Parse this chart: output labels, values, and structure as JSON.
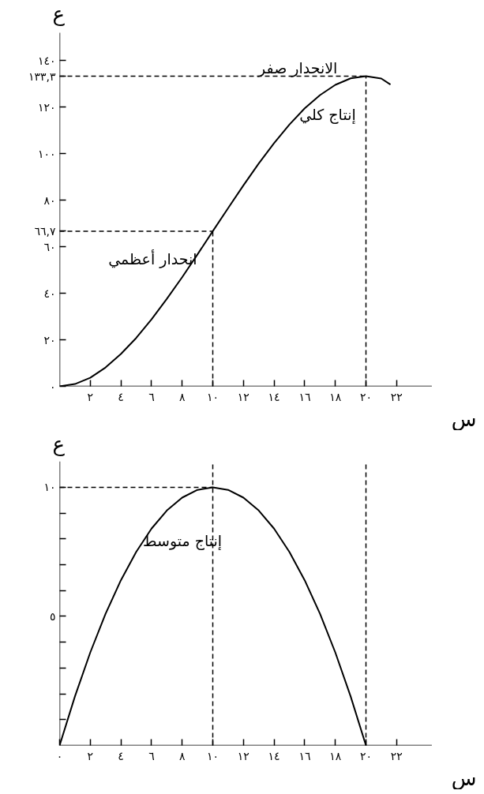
{
  "chart_data": [
    {
      "type": "line",
      "xlabel": "س",
      "ylabel": "ع",
      "x": [
        0,
        1,
        2,
        3,
        4,
        5,
        6,
        7,
        8,
        9,
        10,
        11,
        12,
        13,
        14,
        15,
        16,
        17,
        18,
        19,
        20,
        21,
        21.6
      ],
      "series": [
        {
          "color": "#000000",
          "values": [
            0,
            1.0,
            3.7,
            8.1,
            13.9,
            20.8,
            28.8,
            37.6,
            46.9,
            56.7,
            66.7,
            76.6,
            86.4,
            95.8,
            104.5,
            112.5,
            119.5,
            125.2,
            129.6,
            132.4,
            133.3,
            132.3,
            129.7
          ]
        }
      ],
      "xlim": [
        0,
        24.3
      ],
      "ylim": [
        0,
        152
      ],
      "xticks": [
        {
          "value": 2,
          "label": "٢"
        },
        {
          "value": 4,
          "label": "٤"
        },
        {
          "value": 6,
          "label": "٦"
        },
        {
          "value": 8,
          "label": "٨"
        },
        {
          "value": 10,
          "label": "١٠"
        },
        {
          "value": 12,
          "label": "١٢"
        },
        {
          "value": 14,
          "label": "١٤"
        },
        {
          "value": 16,
          "label": "١٦"
        },
        {
          "value": 18,
          "label": "١٨"
        },
        {
          "value": 20,
          "label": "٢٠"
        },
        {
          "value": 22,
          "label": "٢٢"
        }
      ],
      "yticks": [
        {
          "value": 0,
          "label": "٠"
        },
        {
          "value": 20,
          "label": "٢٠"
        },
        {
          "value": 40,
          "label": "٤٠"
        },
        {
          "value": 60,
          "label": "٦٠"
        },
        {
          "value": 66.7,
          "label": "٦٦,٧"
        },
        {
          "value": 80,
          "label": "٨٠"
        },
        {
          "value": 100,
          "label": "١٠٠"
        },
        {
          "value": 120,
          "label": "١٢٠"
        },
        {
          "value": 133.3,
          "label": "١٣٣,٣"
        },
        {
          "value": 140,
          "label": "١٤٠"
        }
      ],
      "ref_lines": [
        {
          "axis": "y",
          "value": 133.3,
          "color": "#000000",
          "line_style": "dashed"
        },
        {
          "axis": "y",
          "value": 66.7,
          "color": "#000000",
          "line_style": "dashed"
        },
        {
          "axis": "x",
          "value": 10,
          "color": "#000000",
          "line_style": "dashed"
        },
        {
          "axis": "x",
          "value": 20,
          "color": "#000000",
          "line_style": "dashed"
        }
      ],
      "annotations": [
        "الانحدار صفر",
        "إنتاج كلي",
        "انحدار أعظمي"
      ],
      "grid": false,
      "marker": "none",
      "line_style": "solid"
    },
    {
      "type": "line",
      "xlabel": "س",
      "ylabel": "ع",
      "x": [
        0,
        1,
        2,
        3,
        4,
        5,
        6,
        7,
        8,
        9,
        10,
        11,
        12,
        13,
        14,
        15,
        16,
        17,
        18,
        19,
        20
      ],
      "series": [
        {
          "color": "#000000",
          "values": [
            0,
            1.9,
            3.6,
            5.1,
            6.4,
            7.5,
            8.4,
            9.1,
            9.6,
            9.9,
            10,
            9.9,
            9.6,
            9.1,
            8.4,
            7.5,
            6.4,
            5.1,
            3.6,
            1.9,
            0
          ]
        }
      ],
      "xlim": [
        0,
        24.3
      ],
      "ylim": [
        0,
        11
      ],
      "xticks": [
        {
          "value": 0,
          "label": "٠"
        },
        {
          "value": 2,
          "label": "٢"
        },
        {
          "value": 4,
          "label": "٤"
        },
        {
          "value": 6,
          "label": "٦"
        },
        {
          "value": 8,
          "label": "٨"
        },
        {
          "value": 10,
          "label": "١٠"
        },
        {
          "value": 12,
          "label": "١٢"
        },
        {
          "value": 14,
          "label": "١٤"
        },
        {
          "value": 16,
          "label": "١٦"
        },
        {
          "value": 18,
          "label": "١٨"
        },
        {
          "value": 20,
          "label": "٢٠"
        },
        {
          "value": 22,
          "label": "٢٢"
        }
      ],
      "yticks": [
        {
          "value": 1,
          "label": null
        },
        {
          "value": 2,
          "label": null
        },
        {
          "value": 3,
          "label": null
        },
        {
          "value": 4,
          "label": null
        },
        {
          "value": 5,
          "label": "٥"
        },
        {
          "value": 6,
          "label": null
        },
        {
          "value": 7,
          "label": null
        },
        {
          "value": 8,
          "label": null
        },
        {
          "value": 9,
          "label": null
        },
        {
          "value": 10,
          "label": "١٠"
        }
      ],
      "ref_lines": [
        {
          "axis": "y",
          "value": 10,
          "color": "#000000",
          "line_style": "dashed"
        },
        {
          "axis": "x",
          "value": 10,
          "color": "#000000",
          "line_style": "dashed"
        },
        {
          "axis": "x",
          "value": 20,
          "color": "#000000",
          "line_style": "dashed"
        }
      ],
      "annotations": [
        "إنتاج متوسط"
      ],
      "grid": false,
      "marker": "none",
      "line_style": "solid"
    }
  ]
}
